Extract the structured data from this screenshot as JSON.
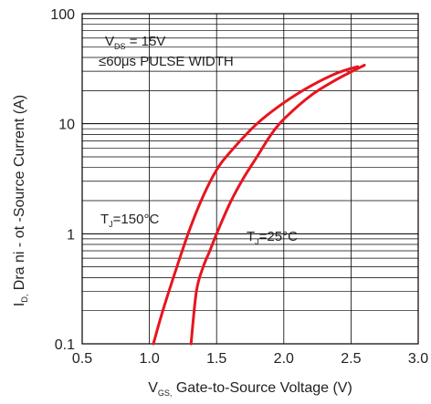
{
  "chart_data": {
    "type": "line",
    "title": "",
    "xlabel": {
      "main": "V",
      "sub": "GS,",
      "rest": " Gate-to-Source Voltage (V)"
    },
    "ylabel": {
      "main": "I",
      "sub": "D,",
      "rest": " Dra ni - ot -Source Current (A)"
    },
    "xlim": [
      0.5,
      3.0
    ],
    "ylim": [
      0.1,
      100
    ],
    "yscale": "log",
    "grid": true,
    "x_ticks": [
      "0.5",
      "1.0",
      "1.5",
      "2.0",
      "2.5",
      "3.0"
    ],
    "y_ticks": [
      "0.1",
      "1",
      "10",
      "100"
    ],
    "line_color": "#e8141e",
    "annotations": {
      "vds": {
        "main": "V",
        "sub": "DS",
        "rest": " = 15V"
      },
      "pulse": "≤60μs PULSE WIDTH",
      "tj150": {
        "main": "T",
        "sub": "J",
        "rest": "=150°C"
      },
      "tj25": {
        "main": "T",
        "sub": "J",
        "rest": "=25°C"
      }
    },
    "series": [
      {
        "label_ref": "tj150",
        "x": [
          1.03,
          1.1,
          1.2,
          1.3,
          1.4,
          1.5,
          1.6,
          1.8,
          2.0,
          2.2,
          2.4,
          2.55
        ],
        "y": [
          0.1,
          0.2,
          0.48,
          1.1,
          2.2,
          3.8,
          5.5,
          10,
          15.5,
          22,
          29,
          33
        ]
      },
      {
        "label_ref": "tj25",
        "x": [
          1.31,
          1.35,
          1.4,
          1.45,
          1.5,
          1.6,
          1.7,
          1.8,
          1.9,
          2.0,
          2.2,
          2.4,
          2.6
        ],
        "y": [
          0.1,
          0.3,
          0.5,
          0.7,
          1.0,
          1.9,
          3.2,
          5.0,
          7.8,
          11,
          18,
          25.5,
          34
        ]
      }
    ]
  }
}
